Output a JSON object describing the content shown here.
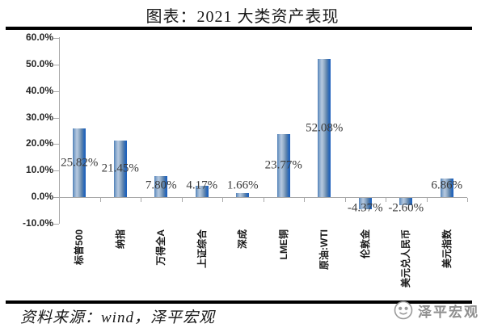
{
  "title": "图表：2021 大类资产表现",
  "source": {
    "text": "资料来源：wind，泽平宏观"
  },
  "watermark": {
    "text": "泽平宏观",
    "logo": "zeping-face-logo"
  },
  "chart_data": {
    "type": "bar",
    "title": "图表：2021 大类资产表现",
    "categories": [
      "标普500",
      "纳指",
      "万得全A",
      "上证综合",
      "深成",
      "LME铜",
      "原油:WTI",
      "伦敦金",
      "美元兑人民币",
      "美元指数"
    ],
    "values": [
      25.82,
      21.45,
      7.8,
      4.17,
      1.66,
      23.77,
      52.08,
      -4.37,
      -2.6,
      6.86
    ],
    "value_labels": [
      "25.82%",
      "21.45%",
      "7.80%",
      "4.17%",
      "1.66%",
      "23.77%",
      "52.08%",
      "-4.37%",
      "-2.60%",
      "6.86%"
    ],
    "xlabel": "",
    "ylabel": "",
    "ylim": [
      -10,
      60
    ],
    "ytick_values": [
      60,
      50,
      40,
      30,
      20,
      10,
      0,
      -10
    ],
    "ytick_labels": [
      "60.0%",
      "50.0%",
      "40.0%",
      "30.0%",
      "20.0%",
      "10.0%",
      "0.0%",
      "-10.0%"
    ],
    "grid": false,
    "legend": "none",
    "bar_gradient": [
      "#4f7fb8",
      "#b6c9e0",
      "#1d60bd"
    ],
    "axis_color": "#a9a9a9",
    "value_label_color": "#3a3a3a"
  }
}
